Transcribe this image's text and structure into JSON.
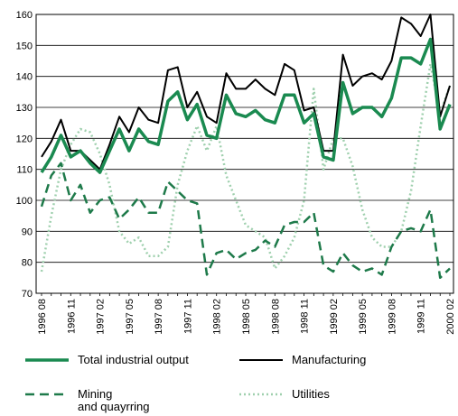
{
  "chart_data": {
    "type": "line",
    "categories": [
      "1996 08",
      null,
      null,
      "1996 11",
      null,
      null,
      "1997 02",
      null,
      null,
      "1997 05",
      null,
      null,
      "1997 08",
      null,
      null,
      "1997 11",
      null,
      null,
      "1998 02",
      null,
      null,
      "1998 05",
      null,
      null,
      "1998 08",
      null,
      null,
      "1998 11",
      null,
      null,
      "1999 02",
      null,
      null,
      "1999 05",
      null,
      null,
      "1999 08",
      null,
      null,
      "1999 11",
      null,
      null,
      "2000 02"
    ],
    "series": [
      {
        "name": "Total industrial output",
        "color": "#1a8a50",
        "style": "solid",
        "width": 3.5,
        "values": [
          109,
          114,
          121,
          114,
          116,
          112,
          109,
          116,
          123,
          116,
          123,
          119,
          118,
          132,
          135,
          126,
          131,
          121,
          120,
          134,
          128,
          127,
          129,
          126,
          125,
          134,
          134,
          125,
          128,
          114,
          113,
          138,
          128,
          130,
          130,
          127,
          133,
          146,
          146,
          144,
          152,
          123,
          131
        ]
      },
      {
        "name": "Manufacturing",
        "color": "#000000",
        "style": "solid",
        "width": 2,
        "values": [
          114,
          119,
          126,
          116,
          116,
          113,
          110,
          118,
          127,
          122,
          130,
          126,
          125,
          142,
          143,
          130,
          135,
          127,
          125,
          141,
          136,
          136,
          139,
          136,
          134,
          144,
          142,
          129,
          130,
          116,
          116,
          147,
          137,
          140,
          141,
          139,
          145,
          159,
          157,
          153,
          160,
          127,
          137
        ]
      },
      {
        "name": "Mining\nand quayrring",
        "color": "#1e7a4a",
        "style": "dashed",
        "width": 2.5,
        "values": [
          98,
          108,
          112,
          100,
          105,
          96,
          100,
          101,
          94,
          97,
          101,
          96,
          96,
          106,
          103,
          100,
          99,
          76,
          83,
          84,
          81,
          83,
          84,
          87,
          85,
          92,
          93,
          93,
          96,
          79,
          77,
          83,
          79,
          77,
          78,
          76,
          85,
          90,
          91,
          90,
          97,
          75,
          78
        ]
      },
      {
        "name": "Utilities",
        "color": "#9fd0ae",
        "style": "dotted",
        "width": 2.5,
        "values": [
          77,
          95,
          110,
          118,
          123,
          122,
          115,
          105,
          90,
          86,
          88,
          82,
          82,
          85,
          105,
          116,
          124,
          116,
          124,
          108,
          100,
          92,
          90,
          88,
          78,
          82,
          88,
          100,
          136,
          110,
          120,
          120,
          111,
          97,
          88,
          85,
          85,
          90,
          103,
          124,
          144,
          128,
          137
        ]
      }
    ],
    "ylim": [
      70,
      160
    ],
    "yticks": [
      70,
      80,
      90,
      100,
      110,
      120,
      130,
      140,
      150,
      160
    ],
    "grid": true
  }
}
